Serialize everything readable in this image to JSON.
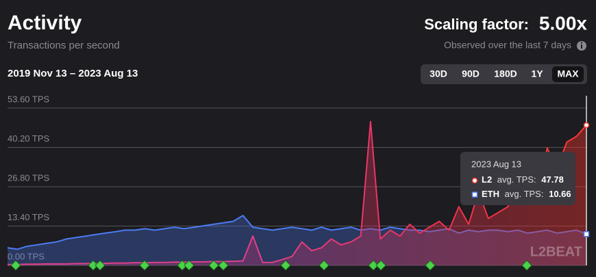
{
  "header": {
    "title": "Activity",
    "subtitle": "Transactions per second",
    "scaling_label": "Scaling factor:",
    "scaling_value": "5.00x",
    "observed": "Observed over the last 7 days",
    "date_range": "2019 Nov 13 – 2023 Aug 13"
  },
  "range_buttons": [
    "30D",
    "90D",
    "180D",
    "1Y",
    "MAX"
  ],
  "selected_range": "MAX",
  "watermark": "L2BEAT",
  "chart_data": {
    "type": "area",
    "ylim": [
      0,
      53.6
    ],
    "yticks": [
      {
        "value": 0,
        "label": "0.00 TPS"
      },
      {
        "value": 13.4,
        "label": "13.40 TPS"
      },
      {
        "value": 26.8,
        "label": "26.80 TPS"
      },
      {
        "value": 40.2,
        "label": "40.20 TPS"
      },
      {
        "value": 53.6,
        "label": "53.60 TPS"
      }
    ],
    "grid": true,
    "series": [
      {
        "name": "L2",
        "color": "#ff3b30",
        "values": [
          0.3,
          0.3,
          0.4,
          0.4,
          0.5,
          0.5,
          0.5,
          0.6,
          0.6,
          0.7,
          0.7,
          0.8,
          0.8,
          0.9,
          0.9,
          1,
          1,
          1.1,
          1.1,
          1.2,
          1.2,
          1.3,
          1.3,
          1.4,
          1.5,
          10,
          1,
          1,
          2,
          3,
          8,
          5,
          6,
          9,
          7,
          8,
          10,
          49,
          9,
          12,
          10,
          14,
          11,
          13,
          15,
          12,
          20,
          14,
          25,
          16,
          18,
          20,
          30,
          35,
          22,
          40,
          33,
          42,
          44,
          47.78
        ]
      },
      {
        "name": "ETH",
        "color": "#4b7cf3",
        "values": [
          6,
          5.5,
          6.5,
          7,
          7.5,
          8,
          9,
          9.5,
          10,
          10.5,
          11,
          11.5,
          12,
          12,
          12.5,
          12,
          12.5,
          13,
          12.5,
          13,
          13.5,
          14,
          14.5,
          15,
          17,
          13,
          12.5,
          12,
          12.5,
          13,
          12.5,
          12,
          13,
          12,
          12.5,
          13,
          12,
          12.5,
          12,
          13,
          12.5,
          12,
          12,
          11.5,
          12,
          12.5,
          11,
          12,
          11.5,
          12,
          12,
          11.5,
          12,
          11,
          11.5,
          12,
          11,
          11.5,
          12,
          10.66
        ]
      }
    ],
    "tooltip": {
      "date": "2023 Aug 13",
      "label_suffix": "avg. TPS:"
    }
  }
}
